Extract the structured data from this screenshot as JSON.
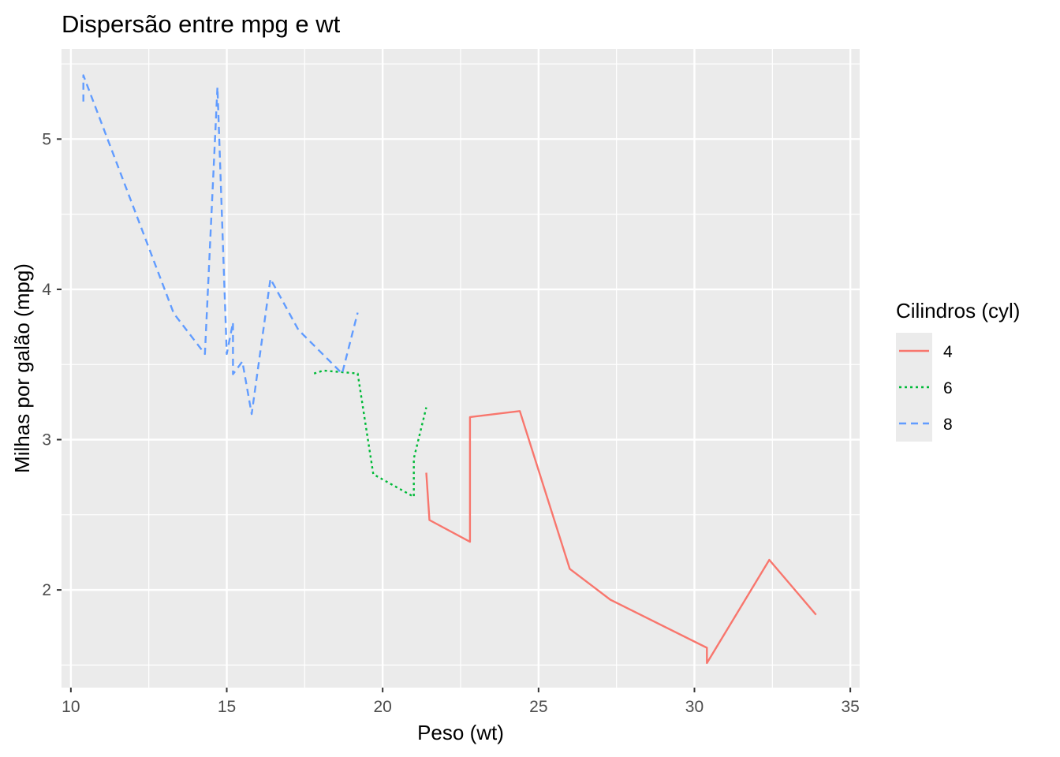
{
  "chart_data": {
    "type": "line",
    "title": "Dispersão entre mpg e wt",
    "xlabel": "Peso (wt)",
    "ylabel": "Milhas por galão (mpg)",
    "xlim": [
      9.7,
      35.3
    ],
    "ylim": [
      1.35,
      5.6
    ],
    "x_ticks": [
      10,
      15,
      20,
      25,
      30,
      35
    ],
    "x_tick_labels": [
      "10",
      "15",
      "20",
      "25",
      "30",
      "35"
    ],
    "y_ticks": [
      2,
      3,
      4,
      5
    ],
    "y_tick_labels": [
      "2",
      "3",
      "4",
      "5"
    ],
    "grid": true,
    "legend": {
      "title": "Cilindros (cyl)",
      "position": "right"
    },
    "series": [
      {
        "name": "4",
        "color": "#F8766D",
        "dash": "solid",
        "x": [
          21.4,
          21.5,
          22.8,
          22.8,
          24.4,
          26.0,
          27.3,
          30.4,
          30.4,
          32.4,
          33.9
        ],
        "y": [
          2.78,
          2.465,
          2.32,
          3.15,
          3.19,
          2.14,
          1.935,
          1.615,
          1.513,
          2.2,
          1.835
        ]
      },
      {
        "name": "6",
        "color": "#00BA38",
        "dash": "dotted",
        "x": [
          17.8,
          18.1,
          19.2,
          19.7,
          21.0,
          21.0,
          21.4
        ],
        "y": [
          3.44,
          3.46,
          3.44,
          2.77,
          2.62,
          2.875,
          3.215
        ]
      },
      {
        "name": "8",
        "color": "#619CFF",
        "dash": "dashed",
        "x": [
          10.4,
          10.4,
          13.3,
          14.3,
          14.7,
          15.0,
          15.2,
          15.2,
          15.5,
          15.8,
          16.4,
          17.3,
          18.7,
          19.2
        ],
        "y": [
          5.25,
          5.424,
          3.84,
          3.57,
          5.345,
          3.57,
          3.78,
          3.435,
          3.52,
          3.17,
          4.07,
          3.73,
          3.44,
          3.845
        ]
      }
    ]
  }
}
